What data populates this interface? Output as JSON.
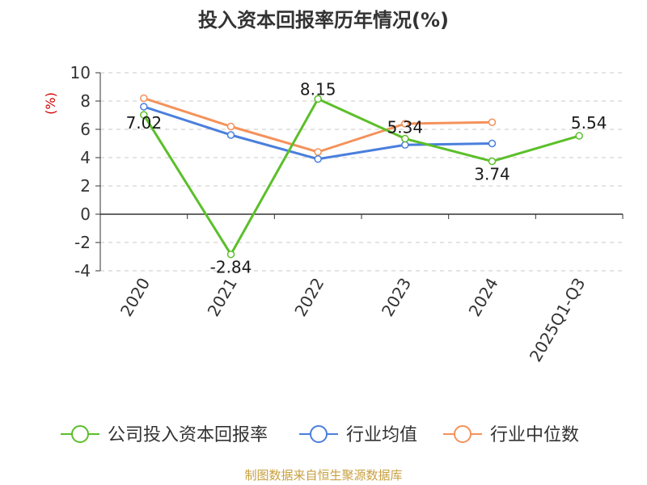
{
  "chart_data": {
    "type": "line",
    "title": "投入资本回报率历年情况(%)",
    "ylabel": "(%)",
    "categories": [
      "2020",
      "2021",
      "2022",
      "2023",
      "2024",
      "2025Q1-Q3"
    ],
    "ylim": [
      -4,
      10
    ],
    "yticks": [
      -4,
      -2,
      0,
      2,
      4,
      6,
      8,
      10
    ],
    "grid": true,
    "legend_position": "bottom",
    "series": [
      {
        "name": "公司投入资本回报率",
        "color": "#5bbf2a",
        "values": [
          7.02,
          -2.84,
          8.15,
          5.34,
          3.74,
          5.54
        ],
        "labels": [
          "7.02",
          "-2.84",
          "8.15",
          "5.34",
          "3.74",
          "5.54"
        ]
      },
      {
        "name": "行业均值",
        "color": "#4a7fdc",
        "values": [
          7.6,
          5.6,
          3.9,
          4.9,
          5.0,
          null
        ]
      },
      {
        "name": "行业中位数",
        "color": "#f4925a",
        "values": [
          8.2,
          6.2,
          4.4,
          6.4,
          6.5,
          null
        ]
      }
    ]
  },
  "source_text": "制图数据来自恒生聚源数据库"
}
